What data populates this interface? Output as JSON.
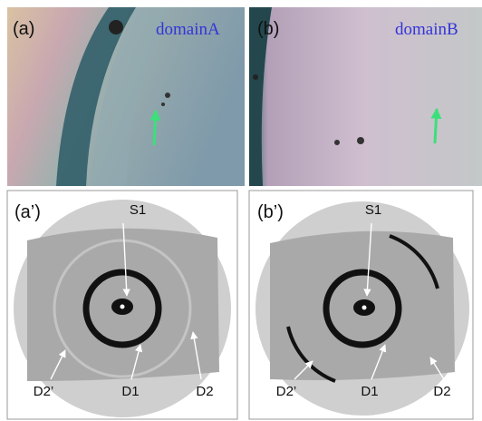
{
  "panels": [
    {
      "label": "(a)",
      "name": "domainA"
    },
    {
      "label": "(b)",
      "name": "domainB"
    }
  ],
  "patterns": [
    {
      "label": "(a’)",
      "annotations": [
        "S1",
        "D2’",
        "D1",
        "D2"
      ]
    },
    {
      "label": "(b’)",
      "annotations": [
        "S1",
        "D2’",
        "D1",
        "D2"
      ]
    }
  ]
}
